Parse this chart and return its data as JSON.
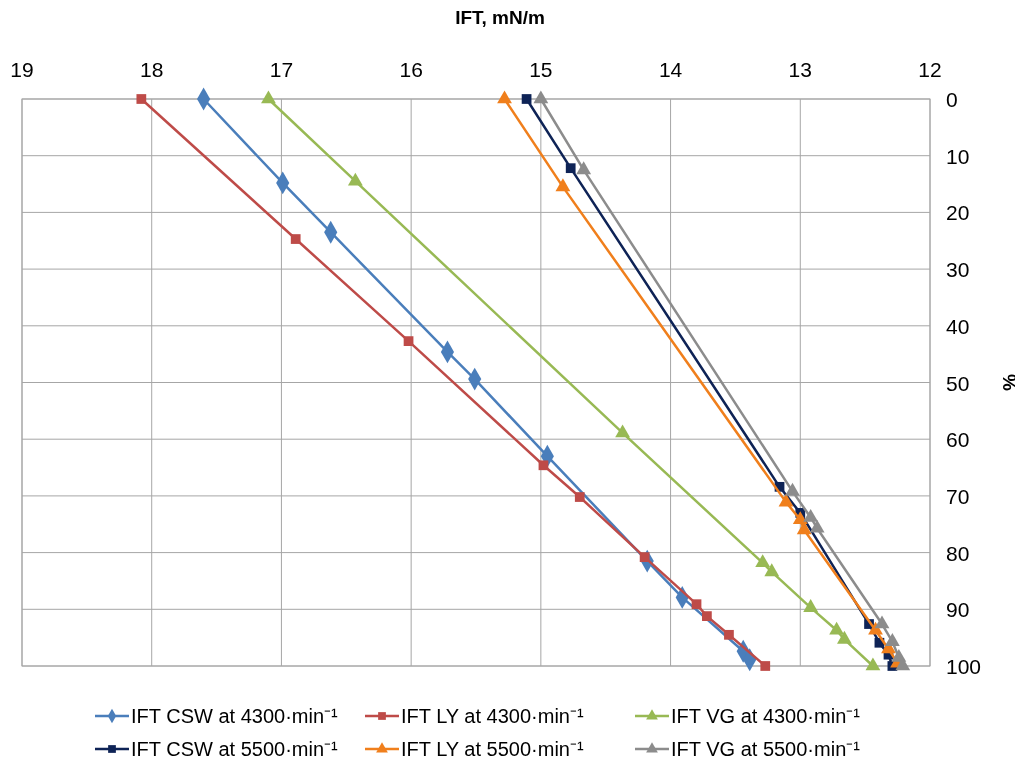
{
  "chart_data": {
    "type": "line",
    "xlabel": "IFT, mN/m",
    "ylabel": "%",
    "xlim": [
      19,
      12
    ],
    "xticks": [
      19,
      18,
      17,
      16,
      15,
      14,
      13,
      12
    ],
    "ylim": [
      100,
      0
    ],
    "yticks": [
      0,
      10,
      20,
      30,
      40,
      50,
      60,
      70,
      80,
      90,
      100
    ],
    "grid": true,
    "legend": "bottom",
    "line_style": "solid",
    "series": [
      {
        "name": "IFT CSW at 4300·min⁻¹",
        "color": "#4a7ebb",
        "marker": "diamond",
        "x": [
          17.6,
          16.99,
          16.62,
          15.72,
          15.51,
          14.95,
          14.18,
          13.91,
          13.44,
          13.39
        ],
        "values": [
          0,
          14.8,
          23.5,
          44.6,
          49.4,
          63,
          81.5,
          87.9,
          97.4,
          98.9
        ]
      },
      {
        "name": "IFT LY at 4300·min⁻¹",
        "color": "#be4b48",
        "marker": "square",
        "x": [
          18.08,
          16.89,
          16.02,
          14.98,
          14.7,
          14.2,
          13.8,
          13.72,
          13.55,
          13.27
        ],
        "values": [
          0,
          24.7,
          42.7,
          64.6,
          70.2,
          80.8,
          89.1,
          91.2,
          94.5,
          100
        ]
      },
      {
        "name": "IFT VG at 4300·min⁻¹",
        "color": "#98b954",
        "marker": "triangle",
        "x": [
          17.1,
          16.43,
          14.37,
          13.29,
          13.22,
          12.92,
          12.72,
          12.66,
          12.44
        ],
        "values": [
          0,
          14.5,
          58.9,
          81.8,
          83.4,
          89.7,
          93.7,
          95.3,
          100
        ]
      },
      {
        "name": "IFT CSW at 5500·min⁻¹",
        "color": "#0e2356",
        "marker": "square",
        "x": [
          15.11,
          14.77,
          13.16,
          13.0,
          12.47,
          12.39,
          12.32,
          12.29
        ],
        "values": [
          0,
          12.2,
          68.4,
          73,
          92.6,
          95.9,
          98,
          100
        ]
      },
      {
        "name": "IFT LY at 5500·min⁻¹",
        "color": "#f07f1c",
        "marker": "triangle",
        "x": [
          15.28,
          14.83,
          13.11,
          13.0,
          12.97,
          12.42,
          12.32,
          12.25
        ],
        "values": [
          0,
          15.5,
          71.1,
          74.2,
          76,
          93.7,
          97,
          99.5
        ]
      },
      {
        "name": "IFT VG at 5500·min⁻¹",
        "color": "#8c8c8c",
        "marker": "triangle",
        "x": [
          15.0,
          14.67,
          13.06,
          12.92,
          12.87,
          12.37,
          12.29,
          12.24,
          12.21
        ],
        "values": [
          0,
          12.5,
          69.2,
          73.8,
          75.7,
          92.6,
          95.7,
          98.5,
          100
        ]
      }
    ]
  }
}
